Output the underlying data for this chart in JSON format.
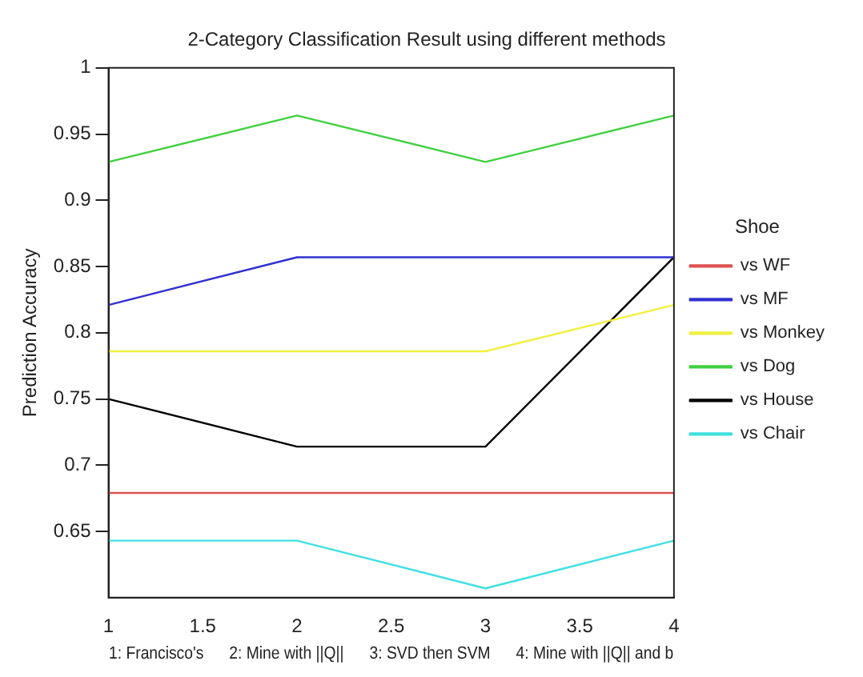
{
  "chart_data": {
    "type": "line",
    "title": "2-Category Classification Result using different methods",
    "xlabel": "1: Francisco's      2: Mine with ||Q||      3: SVD then SVM      4: Mine with ||Q|| and b",
    "ylabel": "Prediction Accuracy",
    "legend_title": "Shoe",
    "x": [
      1,
      2,
      3,
      4
    ],
    "series": [
      {
        "name": "vs WF",
        "color": "#e05050",
        "values": [
          0.679,
          0.679,
          0.679,
          0.679
        ]
      },
      {
        "name": "vs MF",
        "color": "#3030d0",
        "values": [
          0.821,
          0.857,
          0.857,
          0.857
        ]
      },
      {
        "name": "vs Monkey",
        "color": "#f0f040",
        "values": [
          0.786,
          0.786,
          0.786,
          0.821
        ]
      },
      {
        "name": "vs Dog",
        "color": "#40d040",
        "values": [
          0.929,
          0.964,
          0.929,
          0.964
        ]
      },
      {
        "name": "vs House",
        "color": "#000000",
        "values": [
          0.75,
          0.714,
          0.714,
          0.857
        ]
      },
      {
        "name": "vs Chair",
        "color": "#40e0e0",
        "values": [
          0.643,
          0.643,
          0.607,
          0.643
        ]
      }
    ],
    "xlim": [
      1,
      4
    ],
    "xticks": [
      1,
      1.5,
      2,
      2.5,
      3,
      3.5,
      4
    ],
    "ylim": [
      0.6,
      1
    ],
    "yticks": [
      0.65,
      0.7,
      0.75,
      0.8,
      0.85,
      0.9,
      0.95,
      1
    ],
    "grid": false,
    "legend": "right",
    "marker": "none",
    "line_style": "solid"
  }
}
